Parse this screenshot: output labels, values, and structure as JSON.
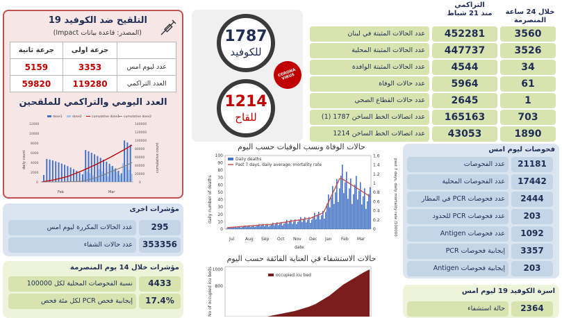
{
  "vaccine_panel": {
    "title": "التلقيح ضد الكوفيد 19",
    "subtitle": "(المصدر: قاعدة بيانات Impact)",
    "col_dose1": "جرعة اولى",
    "col_dose2": "جرعة ثانية",
    "row_yesterday": "عدد ليوم امس",
    "row_cumulative": "العدد التراكمي",
    "yesterday_dose1": "3353",
    "yesterday_dose2": "5159",
    "cumulative_dose1": "119280",
    "cumulative_dose2": "59820",
    "chart_title": "العدد اليومي والتراكمي للملقحين",
    "legend": [
      "dose1",
      "dose2",
      "cumulative dose1",
      "cumulative dose2"
    ],
    "ylabel_left": "daily count",
    "ylabel_right": "cumulative count",
    "months": [
      "Feb",
      "Mar"
    ]
  },
  "hotline": {
    "covid_number": "1787",
    "covid_label": "للكوفيد",
    "vaccine_number": "1214",
    "vaccine_label": "للقاح"
  },
  "stats_header": {
    "cumulative": "التراكمي",
    "since": "منذ 21 شباط",
    "last24": "خلال 24 ساعة",
    "announced": "المنصرمة"
  },
  "stats_rows": [
    {
      "label": "عدد الحالات المثبتة في لبنان",
      "cumulative": "452281",
      "daily": "3560"
    },
    {
      "label": "عدد الحالات المثبتة المحلية",
      "cumulative": "447737",
      "daily": "3526"
    },
    {
      "label": "عدد الحالات المثبتة الوافدة",
      "cumulative": "4544",
      "daily": "34"
    },
    {
      "label": "عدد حالات الوفاة",
      "cumulative": "5964",
      "daily": "61"
    },
    {
      "label": "عدد حالات القطاع الصحي",
      "cumulative": "2645",
      "daily": "1"
    },
    {
      "label": "عدد اتصالات الخط الساخن 1787 (1)",
      "cumulative": "165163",
      "daily": "703"
    },
    {
      "label": "عدد اتصالات الخط الساخن 1214",
      "cumulative": "43053",
      "daily": "1890"
    }
  ],
  "tests_panel": {
    "title": "فحوصات ليوم امس",
    "rows": [
      {
        "label": "عدد الفحوصات",
        "value": "21181"
      },
      {
        "label": "عدد الفحوصات المحلية",
        "value": "17442"
      },
      {
        "label": "عدد فحوصات PCR في المطار",
        "value": "2444"
      },
      {
        "label": "عدد فحوصات PCR للحدود",
        "value": "203"
      },
      {
        "label": "عدد فحوصات Antigen",
        "value": "1092"
      },
      {
        "label": "إيجابية فحوصات PCR",
        "value": "3357"
      },
      {
        "label": "إيجابية فحوصات Antigen",
        "value": "203"
      }
    ]
  },
  "beds_panel": {
    "title": "اسرة الكوفيد 19 ليوم امس",
    "rows": [
      {
        "label": "حالة استشفاء",
        "value": "2364"
      }
    ]
  },
  "other_indicators": {
    "title": "مؤشرات اخرى",
    "rows": [
      {
        "label": "عدد الحالات المكررة ليوم امس",
        "value": "295"
      },
      {
        "label": "عدد حالات الشفاء",
        "value": "353356"
      }
    ]
  },
  "indicators_14": {
    "title": "مؤشرات خلال 14 يوم المنصرمة",
    "rows": [
      {
        "label": "نسبة الفحوصات المحلية لكل 100000",
        "value": "4433"
      },
      {
        "label": "إيجابية فحص PCR لكل مئة فحص",
        "value": "17.4%"
      }
    ]
  },
  "deaths_chart": {
    "title": "حالات الوفاة ونسب الوفيات حسب اليوم",
    "legend_bars": "Daily deaths",
    "legend_line": "Past 7 days, daily average, mortality rate",
    "ylabel": "daily number of deaths",
    "ylabel_right": "past 7 days, daily mortality rate /100000",
    "xlabel": "date",
    "yticks": [
      "0",
      "10",
      "20",
      "30",
      "40",
      "50",
      "60",
      "70",
      "80",
      "90",
      "100"
    ],
    "yticks_right": [
      "0",
      "0.2",
      "0.4",
      "0.6",
      "0.8",
      "1",
      "1.2",
      "1.4",
      "1.6"
    ],
    "months": [
      "Jul",
      "Aug",
      "Sep",
      "Oct",
      "Nov",
      "Dec",
      "Jan",
      "Feb",
      "Mar"
    ]
  },
  "icu_chart": {
    "title": "حالات الاستشفاء في العناية الفائقة حسب اليوم",
    "legend": "occupied icu bed",
    "ylabel": "No of occupied icu beds",
    "yticks": [
      "1000",
      "800"
    ]
  },
  "stamp_text": "CORONA VIRUS",
  "colors": {
    "accent_red": "#c00000",
    "navy": "#1f2d55",
    "bar_blue": "#4472c4",
    "icu_bar": "#7b1d1d"
  }
}
